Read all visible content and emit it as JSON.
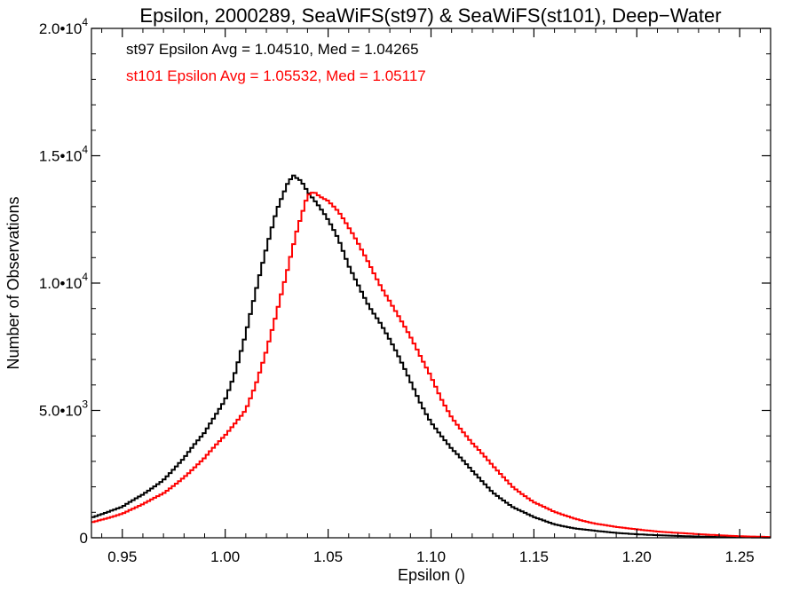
{
  "chart_data": {
    "type": "line",
    "step": true,
    "title": "Epsilon, 2000289, SeaWiFS(st97) & SeaWiFS(st101), Deep−Water",
    "xlabel": "Epsilon ()",
    "ylabel": "Number of Observations",
    "xlim": [
      0.935,
      1.265
    ],
    "ylim": [
      0,
      20000
    ],
    "x_ticks": [
      0.95,
      1.0,
      1.05,
      1.1,
      1.15,
      1.2,
      1.25
    ],
    "x_tick_labels": [
      "0.95",
      "1.00",
      "1.05",
      "1.10",
      "1.15",
      "1.20",
      "1.25"
    ],
    "y_ticks": [
      {
        "value": 0,
        "mant": "0",
        "exp": ""
      },
      {
        "value": 5000,
        "mant": "5.0•10",
        "exp": "3"
      },
      {
        "value": 10000,
        "mant": "1.0•10",
        "exp": "4"
      },
      {
        "value": 15000,
        "mant": "1.5•10",
        "exp": "4"
      },
      {
        "value": 20000,
        "mant": "2.0•10",
        "exp": "4"
      }
    ],
    "grid": false,
    "annotations": [
      {
        "text": "st97 Epsilon Avg = 1.04510, Med = 1.04265",
        "color": "#000000"
      },
      {
        "text": "st101 Epsilon Avg = 1.05532, Med = 1.05117",
        "color": "#ff0000"
      }
    ],
    "series": [
      {
        "color": "#000000",
        "points": [
          [
            0.935,
            800
          ],
          [
            0.95,
            1200
          ],
          [
            0.96,
            1700
          ],
          [
            0.97,
            2300
          ],
          [
            0.98,
            3100
          ],
          [
            0.99,
            4100
          ],
          [
            1.0,
            5500
          ],
          [
            1.005,
            6600
          ],
          [
            1.01,
            8000
          ],
          [
            1.015,
            9600
          ],
          [
            1.02,
            11200
          ],
          [
            1.025,
            12800
          ],
          [
            1.03,
            14000
          ],
          [
            1.033,
            14450
          ],
          [
            1.037,
            14200
          ],
          [
            1.04,
            13700
          ],
          [
            1.045,
            13000
          ],
          [
            1.05,
            12300
          ],
          [
            1.055,
            11600
          ],
          [
            1.06,
            10700
          ],
          [
            1.065,
            10000
          ],
          [
            1.07,
            9200
          ],
          [
            1.075,
            8500
          ],
          [
            1.08,
            7700
          ],
          [
            1.085,
            6900
          ],
          [
            1.09,
            6100
          ],
          [
            1.095,
            5300
          ],
          [
            1.1,
            4600
          ],
          [
            1.11,
            3500
          ],
          [
            1.12,
            2600
          ],
          [
            1.13,
            1800
          ],
          [
            1.14,
            1200
          ],
          [
            1.15,
            800
          ],
          [
            1.16,
            530
          ],
          [
            1.17,
            370
          ],
          [
            1.18,
            270
          ],
          [
            1.19,
            190
          ],
          [
            1.2,
            140
          ],
          [
            1.21,
            100
          ],
          [
            1.22,
            70
          ],
          [
            1.23,
            50
          ],
          [
            1.24,
            30
          ],
          [
            1.25,
            20
          ],
          [
            1.265,
            10
          ]
        ]
      },
      {
        "color": "#ff0000",
        "points": [
          [
            0.935,
            600
          ],
          [
            0.95,
            950
          ],
          [
            0.96,
            1300
          ],
          [
            0.97,
            1750
          ],
          [
            0.98,
            2400
          ],
          [
            0.99,
            3100
          ],
          [
            1.0,
            4000
          ],
          [
            1.01,
            5100
          ],
          [
            1.015,
            6100
          ],
          [
            1.02,
            7300
          ],
          [
            1.025,
            8700
          ],
          [
            1.03,
            10300
          ],
          [
            1.035,
            12100
          ],
          [
            1.04,
            13600
          ],
          [
            1.043,
            13800
          ],
          [
            1.05,
            13300
          ],
          [
            1.055,
            12700
          ],
          [
            1.06,
            12000
          ],
          [
            1.065,
            11400
          ],
          [
            1.07,
            10800
          ],
          [
            1.075,
            10100
          ],
          [
            1.08,
            9400
          ],
          [
            1.085,
            8600
          ],
          [
            1.09,
            7800
          ],
          [
            1.095,
            7000
          ],
          [
            1.1,
            6300
          ],
          [
            1.105,
            5500
          ],
          [
            1.11,
            4800
          ],
          [
            1.12,
            3700
          ],
          [
            1.13,
            2800
          ],
          [
            1.14,
            2000
          ],
          [
            1.15,
            1400
          ],
          [
            1.16,
            1000
          ],
          [
            1.17,
            750
          ],
          [
            1.18,
            560
          ],
          [
            1.19,
            420
          ],
          [
            1.2,
            330
          ],
          [
            1.21,
            250
          ],
          [
            1.22,
            190
          ],
          [
            1.23,
            140
          ],
          [
            1.24,
            100
          ],
          [
            1.25,
            60
          ],
          [
            1.265,
            30
          ]
        ]
      }
    ]
  }
}
